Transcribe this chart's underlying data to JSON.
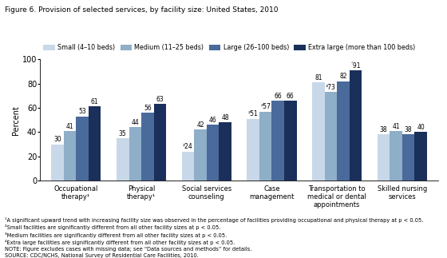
{
  "title": "Figure 6. Provision of selected services, by facility size: United States, 2010",
  "categories": [
    "Occupational\ntherapy¹",
    "Physical\ntherapy¹",
    "Social services\ncounseling",
    "Case\nmanagement",
    "Transportation to\nmedical or dental\nappointments",
    "Skilled nursing\nservices"
  ],
  "series": {
    "Small (4–10 beds)": [
      30,
      35,
      24,
      51,
      81,
      38
    ],
    "Medium (11–25 beds)": [
      41,
      44,
      42,
      57,
      73,
      41
    ],
    "Large (26–100 beds)": [
      53,
      56,
      46,
      66,
      82,
      38
    ],
    "Extra large (more than 100 beds)": [
      61,
      63,
      48,
      66,
      91,
      40
    ]
  },
  "bar_labels": {
    "Small (4–10 beds)": [
      "30",
      "35",
      "²24",
      "²51",
      "81",
      "38"
    ],
    "Medium (11–25 beds)": [
      "41",
      "44",
      "42",
      "²57",
      "³73",
      "41"
    ],
    "Large (26–100 beds)": [
      "53",
      "56",
      "46",
      "66",
      "82",
      "38"
    ],
    "Extra large (more than 100 beds)": [
      "61",
      "63",
      "48",
      "66",
      "´91",
      "40"
    ]
  },
  "colors": [
    "#c8d8e8",
    "#8faec8",
    "#4a6a9c",
    "#1a2f5a"
  ],
  "ylabel": "Percent",
  "ylim": [
    0,
    100
  ],
  "yticks": [
    0,
    20,
    40,
    60,
    80,
    100
  ],
  "footnotes": [
    "¹A significant upward trend with increasing facility size was observed in the percentage of facilities providing occupational and physical therapy at p < 0.05.",
    "²Small facilities are significantly different from all other facility sizes at p < 0.05.",
    "³Medium facilities are significantly different from all other facility sizes at p < 0.05.",
    "⁴Extra large facilities are significantly different from all other facility sizes at p < 0.05.",
    "NOTE: Figure excludes cases with missing data; see “Data sources and methods” for details.",
    "SOURCE: CDC/NCHS, National Survey of Residential Care Facilities, 2010."
  ]
}
